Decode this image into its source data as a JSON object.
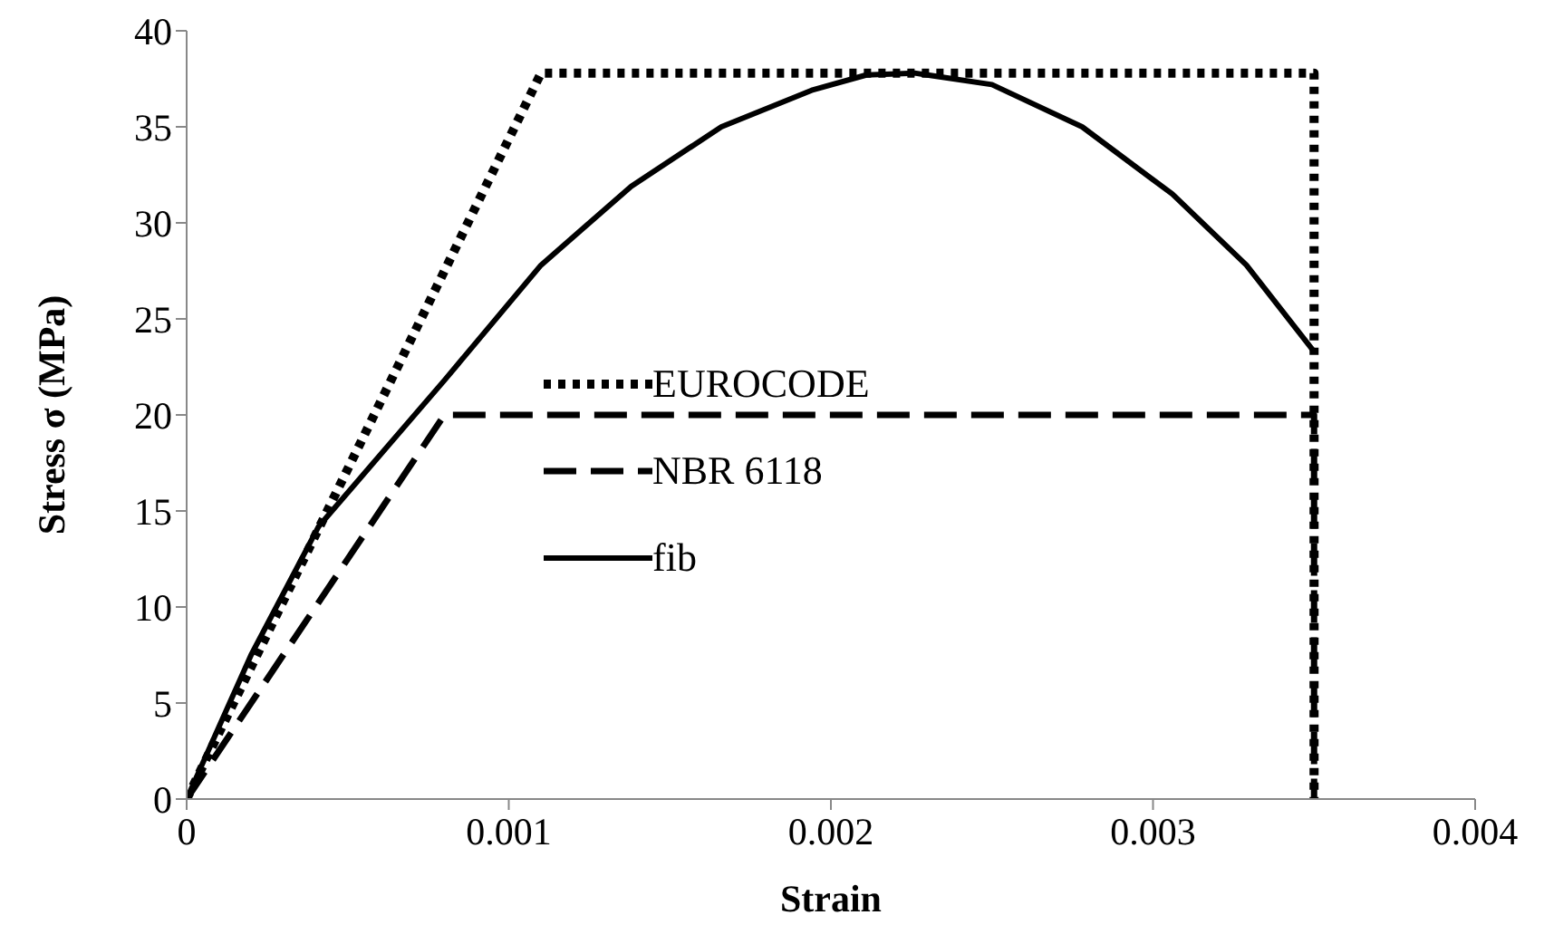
{
  "chart_data": {
    "type": "line",
    "xlabel": "Strain",
    "ylabel": "Stress σ (MPa)",
    "xlim": [
      0,
      0.004
    ],
    "xticks": [
      0,
      0.001,
      0.002,
      0.003,
      0.004
    ],
    "ylim": [
      0,
      40
    ],
    "yticks": [
      0,
      5,
      10,
      15,
      20,
      25,
      30,
      35,
      40
    ],
    "grid": false,
    "legend": "bottom",
    "marker": "none",
    "series": [
      {
        "name": "EUROCODE",
        "color": "#000000",
        "line_style": "dotted",
        "x": [
          0,
          0.0011,
          0.0035,
          0.0035
        ],
        "values": [
          0,
          37.8,
          37.8,
          0
        ]
      },
      {
        "name": "NBR 6118",
        "color": "#000000",
        "line_style": "dashed",
        "x": [
          0,
          0.0008,
          0.0035,
          0.0035
        ],
        "values": [
          0,
          20,
          20,
          0
        ]
      },
      {
        "name": "fib",
        "color": "#000000",
        "line_style": "solid",
        "x": [
          0,
          0.0002,
          0.00041,
          0.0008,
          0.0011,
          0.00138,
          0.00166,
          0.00194,
          0.00211,
          0.00226,
          0.0025,
          0.00278,
          0.00306,
          0.00329,
          0.0035
        ],
        "values": [
          0,
          7.5,
          14.2,
          21.8,
          27.8,
          31.9,
          35.0,
          36.9,
          37.7,
          37.8,
          37.2,
          35.0,
          31.5,
          27.8,
          23.3
        ]
      }
    ]
  }
}
